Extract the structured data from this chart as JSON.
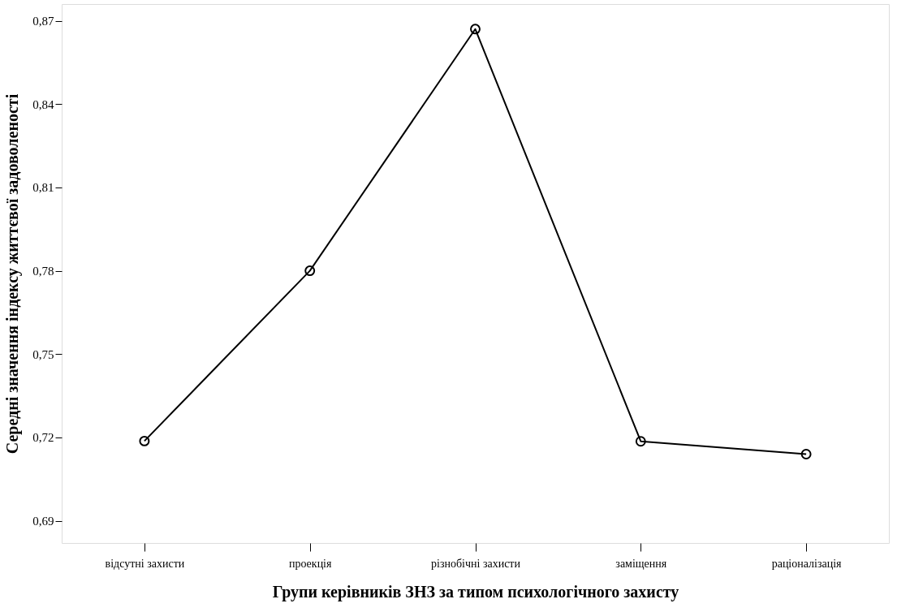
{
  "chart_data": {
    "type": "line",
    "xlabel": "Групи керівників ЗНЗ за типом психологічного захисту",
    "ylabel": "Середні значення індексу життєвої задоволеності",
    "categories": [
      "відсутні захисти",
      "проекція",
      "різнобічні захисти",
      "заміщення",
      "раціоналізація"
    ],
    "series": [
      {
        "color": "#000000",
        "values": [
          0.7187,
          0.78,
          0.867,
          0.7186,
          0.714
        ]
      }
    ],
    "ylim": [
      0.682,
      0.876
    ],
    "yticks": [
      {
        "value": 0.69,
        "label": "0,69"
      },
      {
        "value": 0.72,
        "label": "0,72"
      },
      {
        "value": 0.75,
        "label": "0,75"
      },
      {
        "value": 0.78,
        "label": "0,78"
      },
      {
        "value": 0.81,
        "label": "0,81"
      },
      {
        "value": 0.84,
        "label": "0,84"
      },
      {
        "value": 0.87,
        "label": "0,87"
      }
    ],
    "grid": false,
    "legend": false,
    "marker": "circle",
    "line_style": "solid"
  }
}
